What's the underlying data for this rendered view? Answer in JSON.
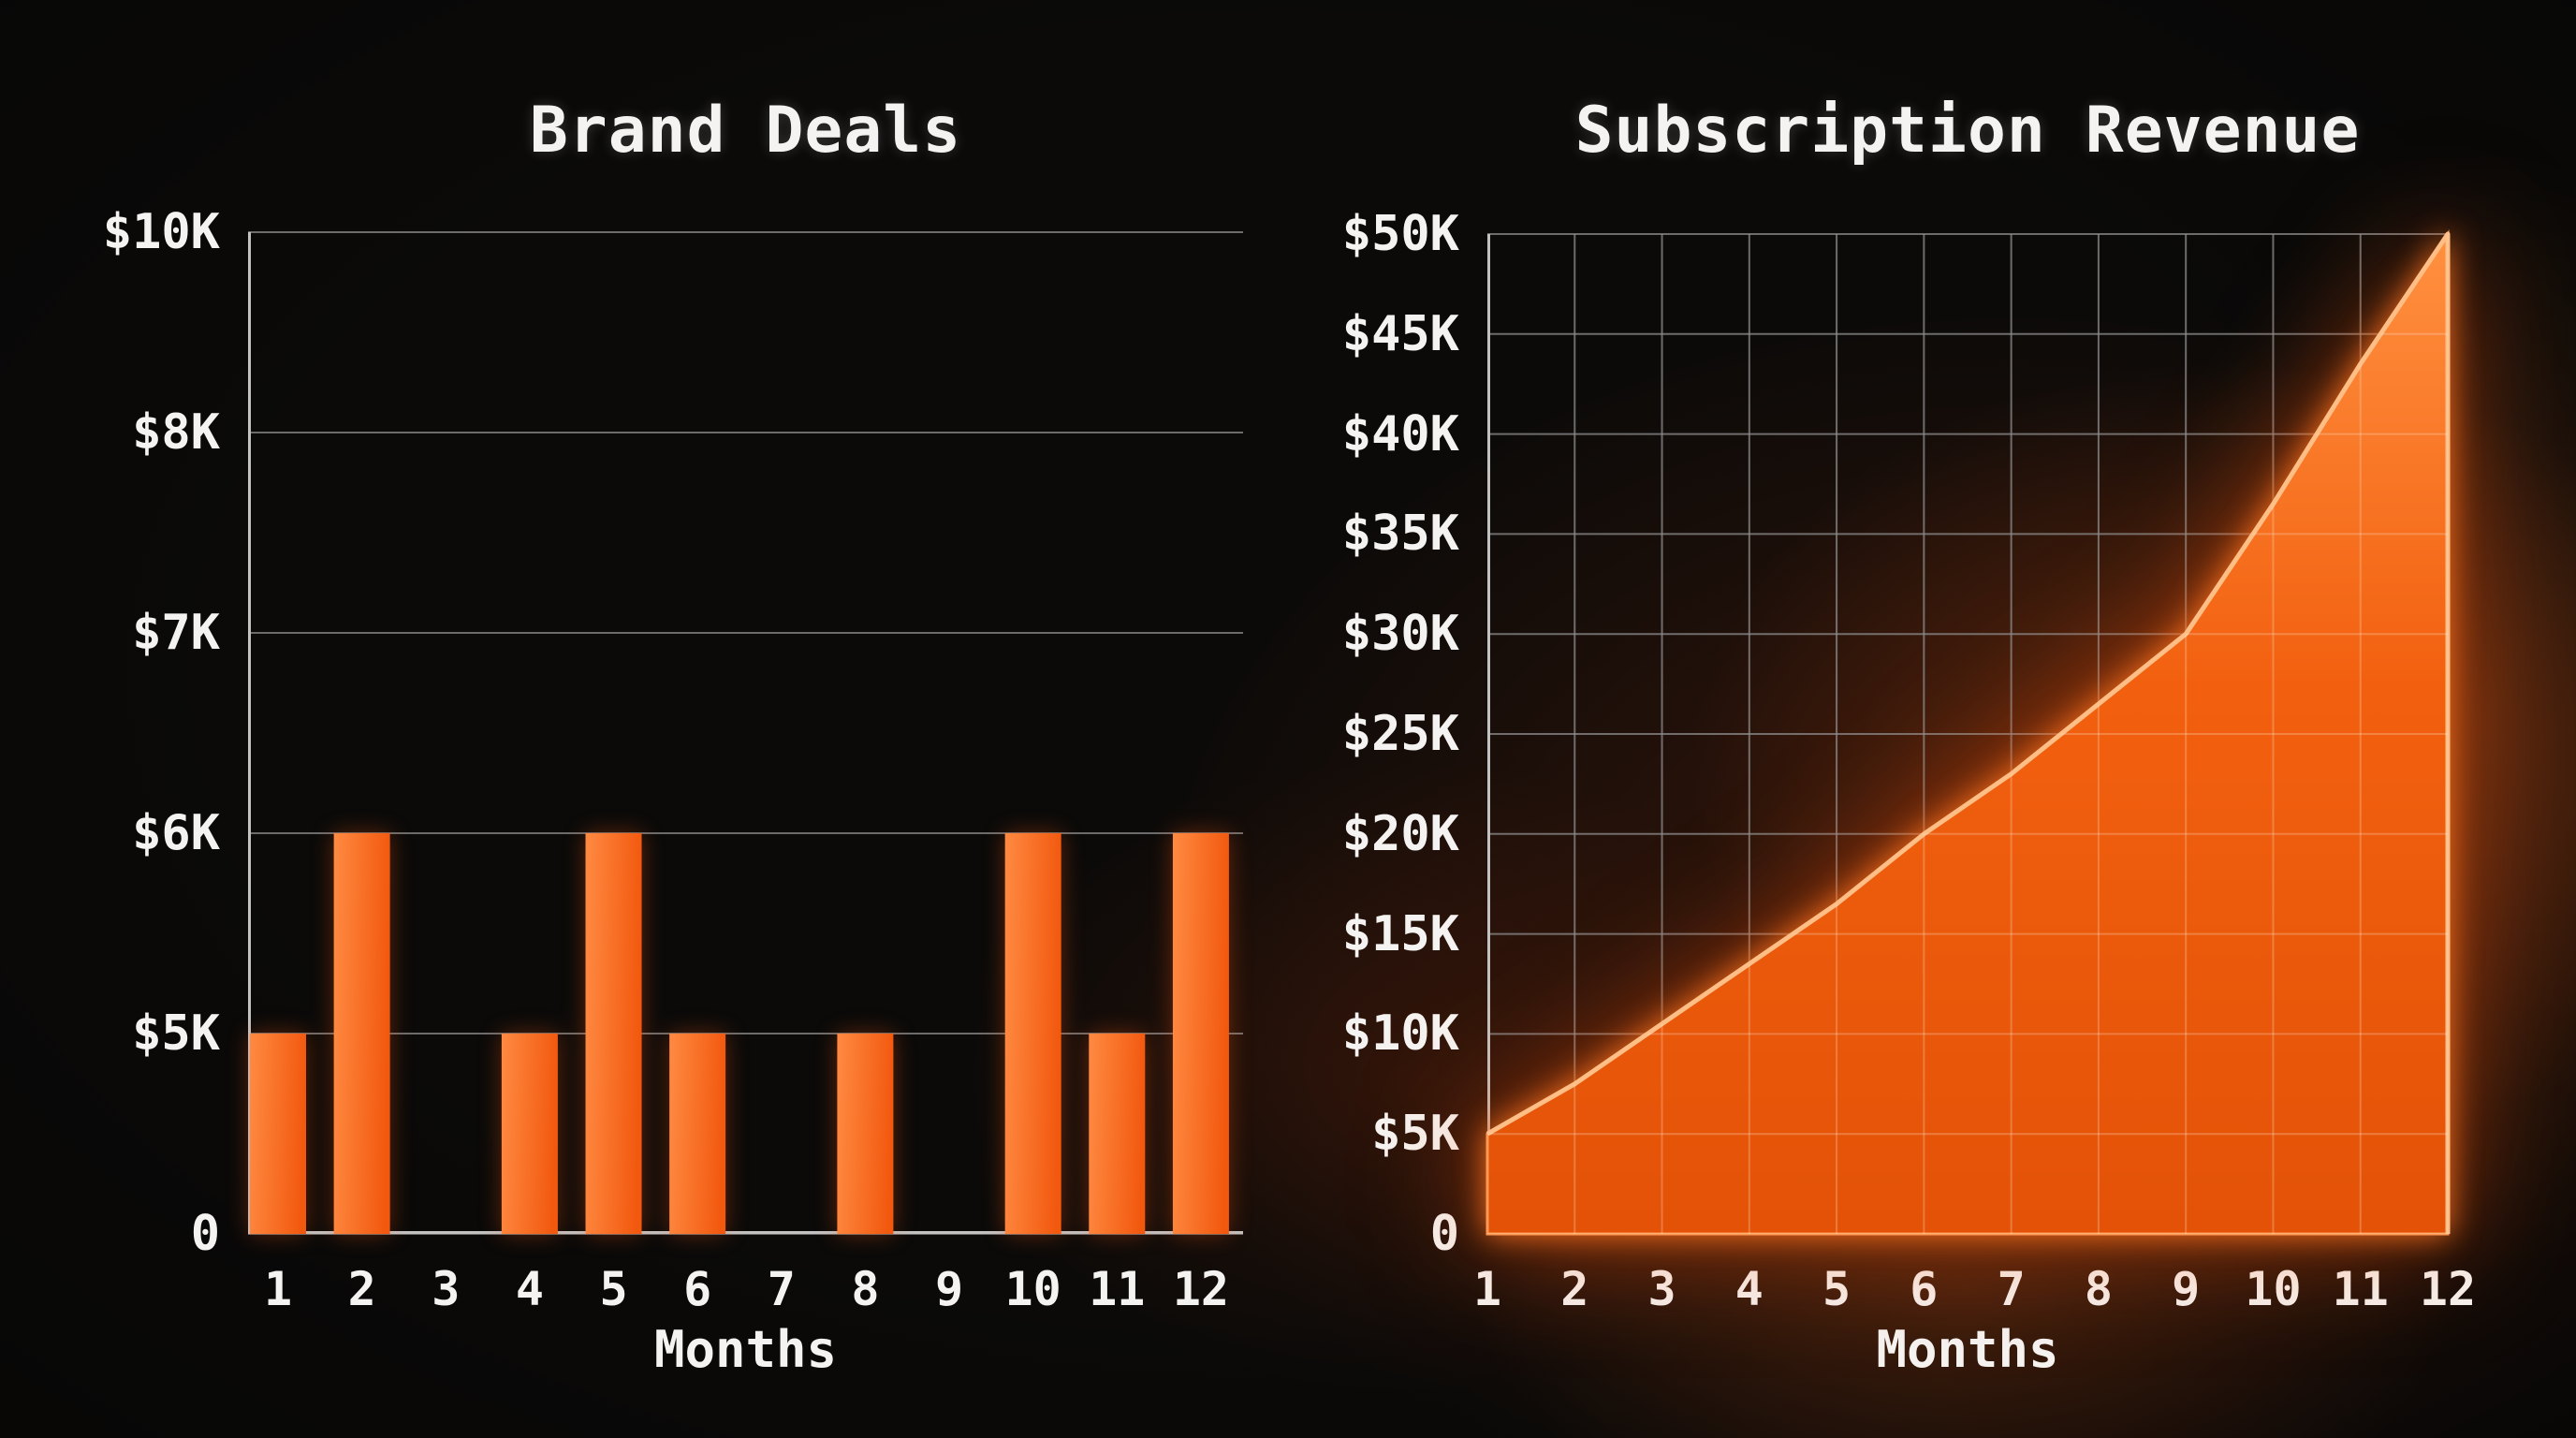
{
  "page": {
    "background": "#0b0a09"
  },
  "colors": {
    "background": "#0b0a09",
    "text": "#f5f3f1",
    "grid": "#8d8d8d",
    "axis": "#c2c2c2",
    "bar_orange_light": "#ff8a42",
    "bar_orange": "#f2590f",
    "area_orange_top": "#ff9040",
    "area_orange_mid": "#f2600f",
    "area_orange_bottom": "#e35207",
    "area_rim": "#ffbe85",
    "glow_orange": "#ff7a1e"
  },
  "chart_data": [
    {
      "type": "bar",
      "title": "Brand Deals",
      "xlabel": "Months",
      "categories": [
        "1",
        "2",
        "3",
        "4",
        "5",
        "6",
        "7",
        "8",
        "9",
        "10",
        "11",
        "12"
      ],
      "values": [
        5,
        6,
        0,
        5,
        6,
        5,
        0,
        5,
        0,
        6,
        5,
        6
      ],
      "values_unit": "$K",
      "y_tick_labels": [
        "$10K",
        "$8K",
        "$7K",
        "$6K",
        "$5K",
        "0"
      ],
      "y_tick_values": [
        10,
        8,
        7,
        6,
        5,
        0
      ],
      "grid": "horizontal",
      "legend": false
    },
    {
      "type": "area",
      "title": "Subscription Revenue",
      "xlabel": "Months",
      "categories": [
        "1",
        "2",
        "3",
        "4",
        "5",
        "6",
        "7",
        "8",
        "9",
        "10",
        "11",
        "12"
      ],
      "values": [
        5,
        7.5,
        10.5,
        13.5,
        16.5,
        20,
        23,
        26.5,
        30,
        36.5,
        43.5,
        50
      ],
      "values_unit": "$K",
      "y_tick_labels": [
        "$50K",
        "$45K",
        "$40K",
        "$35K",
        "$30K",
        "$25K",
        "$20K",
        "$15K",
        "$10K",
        "$5K",
        "0"
      ],
      "y_tick_values": [
        50,
        45,
        40,
        35,
        30,
        25,
        20,
        15,
        10,
        5,
        0
      ],
      "ylim": [
        0,
        50
      ],
      "grid": "both",
      "legend": false
    }
  ]
}
